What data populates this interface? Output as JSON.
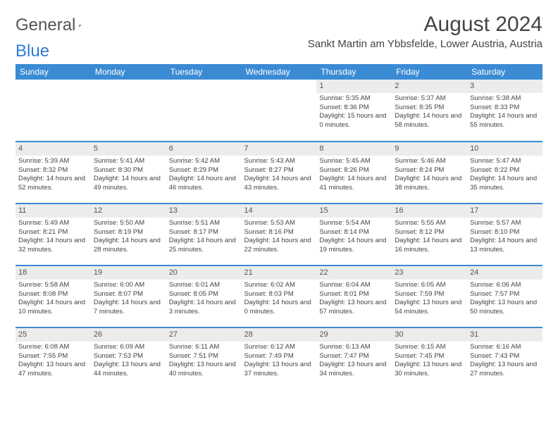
{
  "logo": {
    "text1": "General",
    "text2": "Blue"
  },
  "title": "August 2024",
  "location": "Sankt Martin am Ybbsfelde, Lower Austria, Austria",
  "colors": {
    "header_bg": "#3b8bd4",
    "header_text": "#ffffff",
    "daynum_bg": "#ececec",
    "border": "#3b8bd4",
    "logo_gray": "#555555",
    "logo_blue": "#2e7cd1",
    "text": "#444444"
  },
  "weekdays": [
    "Sunday",
    "Monday",
    "Tuesday",
    "Wednesday",
    "Thursday",
    "Friday",
    "Saturday"
  ],
  "weeks": [
    [
      {
        "day": "",
        "sunrise": "",
        "sunset": "",
        "daylight": ""
      },
      {
        "day": "",
        "sunrise": "",
        "sunset": "",
        "daylight": ""
      },
      {
        "day": "",
        "sunrise": "",
        "sunset": "",
        "daylight": ""
      },
      {
        "day": "",
        "sunrise": "",
        "sunset": "",
        "daylight": ""
      },
      {
        "day": "1",
        "sunrise": "Sunrise: 5:35 AM",
        "sunset": "Sunset: 8:36 PM",
        "daylight": "Daylight: 15 hours and 0 minutes."
      },
      {
        "day": "2",
        "sunrise": "Sunrise: 5:37 AM",
        "sunset": "Sunset: 8:35 PM",
        "daylight": "Daylight: 14 hours and 58 minutes."
      },
      {
        "day": "3",
        "sunrise": "Sunrise: 5:38 AM",
        "sunset": "Sunset: 8:33 PM",
        "daylight": "Daylight: 14 hours and 55 minutes."
      }
    ],
    [
      {
        "day": "4",
        "sunrise": "Sunrise: 5:39 AM",
        "sunset": "Sunset: 8:32 PM",
        "daylight": "Daylight: 14 hours and 52 minutes."
      },
      {
        "day": "5",
        "sunrise": "Sunrise: 5:41 AM",
        "sunset": "Sunset: 8:30 PM",
        "daylight": "Daylight: 14 hours and 49 minutes."
      },
      {
        "day": "6",
        "sunrise": "Sunrise: 5:42 AM",
        "sunset": "Sunset: 8:29 PM",
        "daylight": "Daylight: 14 hours and 46 minutes."
      },
      {
        "day": "7",
        "sunrise": "Sunrise: 5:43 AM",
        "sunset": "Sunset: 8:27 PM",
        "daylight": "Daylight: 14 hours and 43 minutes."
      },
      {
        "day": "8",
        "sunrise": "Sunrise: 5:45 AM",
        "sunset": "Sunset: 8:26 PM",
        "daylight": "Daylight: 14 hours and 41 minutes."
      },
      {
        "day": "9",
        "sunrise": "Sunrise: 5:46 AM",
        "sunset": "Sunset: 8:24 PM",
        "daylight": "Daylight: 14 hours and 38 minutes."
      },
      {
        "day": "10",
        "sunrise": "Sunrise: 5:47 AM",
        "sunset": "Sunset: 8:22 PM",
        "daylight": "Daylight: 14 hours and 35 minutes."
      }
    ],
    [
      {
        "day": "11",
        "sunrise": "Sunrise: 5:49 AM",
        "sunset": "Sunset: 8:21 PM",
        "daylight": "Daylight: 14 hours and 32 minutes."
      },
      {
        "day": "12",
        "sunrise": "Sunrise: 5:50 AM",
        "sunset": "Sunset: 8:19 PM",
        "daylight": "Daylight: 14 hours and 28 minutes."
      },
      {
        "day": "13",
        "sunrise": "Sunrise: 5:51 AM",
        "sunset": "Sunset: 8:17 PM",
        "daylight": "Daylight: 14 hours and 25 minutes."
      },
      {
        "day": "14",
        "sunrise": "Sunrise: 5:53 AM",
        "sunset": "Sunset: 8:16 PM",
        "daylight": "Daylight: 14 hours and 22 minutes."
      },
      {
        "day": "15",
        "sunrise": "Sunrise: 5:54 AM",
        "sunset": "Sunset: 8:14 PM",
        "daylight": "Daylight: 14 hours and 19 minutes."
      },
      {
        "day": "16",
        "sunrise": "Sunrise: 5:55 AM",
        "sunset": "Sunset: 8:12 PM",
        "daylight": "Daylight: 14 hours and 16 minutes."
      },
      {
        "day": "17",
        "sunrise": "Sunrise: 5:57 AM",
        "sunset": "Sunset: 8:10 PM",
        "daylight": "Daylight: 14 hours and 13 minutes."
      }
    ],
    [
      {
        "day": "18",
        "sunrise": "Sunrise: 5:58 AM",
        "sunset": "Sunset: 8:08 PM",
        "daylight": "Daylight: 14 hours and 10 minutes."
      },
      {
        "day": "19",
        "sunrise": "Sunrise: 6:00 AM",
        "sunset": "Sunset: 8:07 PM",
        "daylight": "Daylight: 14 hours and 7 minutes."
      },
      {
        "day": "20",
        "sunrise": "Sunrise: 6:01 AM",
        "sunset": "Sunset: 8:05 PM",
        "daylight": "Daylight: 14 hours and 3 minutes."
      },
      {
        "day": "21",
        "sunrise": "Sunrise: 6:02 AM",
        "sunset": "Sunset: 8:03 PM",
        "daylight": "Daylight: 14 hours and 0 minutes."
      },
      {
        "day": "22",
        "sunrise": "Sunrise: 6:04 AM",
        "sunset": "Sunset: 8:01 PM",
        "daylight": "Daylight: 13 hours and 57 minutes."
      },
      {
        "day": "23",
        "sunrise": "Sunrise: 6:05 AM",
        "sunset": "Sunset: 7:59 PM",
        "daylight": "Daylight: 13 hours and 54 minutes."
      },
      {
        "day": "24",
        "sunrise": "Sunrise: 6:06 AM",
        "sunset": "Sunset: 7:57 PM",
        "daylight": "Daylight: 13 hours and 50 minutes."
      }
    ],
    [
      {
        "day": "25",
        "sunrise": "Sunrise: 6:08 AM",
        "sunset": "Sunset: 7:55 PM",
        "daylight": "Daylight: 13 hours and 47 minutes."
      },
      {
        "day": "26",
        "sunrise": "Sunrise: 6:09 AM",
        "sunset": "Sunset: 7:53 PM",
        "daylight": "Daylight: 13 hours and 44 minutes."
      },
      {
        "day": "27",
        "sunrise": "Sunrise: 6:11 AM",
        "sunset": "Sunset: 7:51 PM",
        "daylight": "Daylight: 13 hours and 40 minutes."
      },
      {
        "day": "28",
        "sunrise": "Sunrise: 6:12 AM",
        "sunset": "Sunset: 7:49 PM",
        "daylight": "Daylight: 13 hours and 37 minutes."
      },
      {
        "day": "29",
        "sunrise": "Sunrise: 6:13 AM",
        "sunset": "Sunset: 7:47 PM",
        "daylight": "Daylight: 13 hours and 34 minutes."
      },
      {
        "day": "30",
        "sunrise": "Sunrise: 6:15 AM",
        "sunset": "Sunset: 7:45 PM",
        "daylight": "Daylight: 13 hours and 30 minutes."
      },
      {
        "day": "31",
        "sunrise": "Sunrise: 6:16 AM",
        "sunset": "Sunset: 7:43 PM",
        "daylight": "Daylight: 13 hours and 27 minutes."
      }
    ]
  ]
}
